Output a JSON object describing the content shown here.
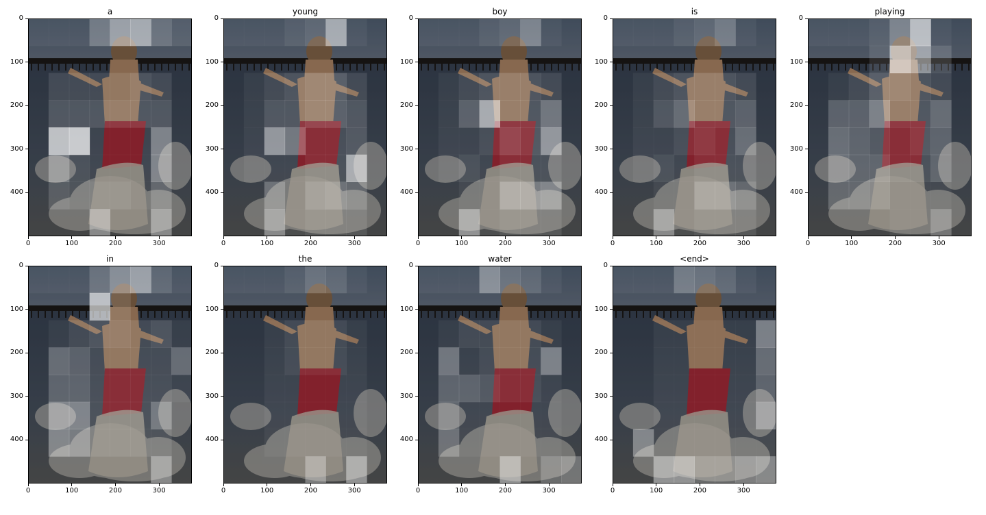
{
  "chart_data": {
    "type": "heatmap",
    "description_free": true,
    "x_ticks": [
      0,
      100,
      200,
      300
    ],
    "y_ticks": [
      0,
      100,
      200,
      300,
      400
    ],
    "xlim": [
      0,
      375
    ],
    "ylim": [
      500,
      0
    ],
    "grid": {
      "rows": 8,
      "cols": 8
    },
    "panels": [
      {
        "title": "a",
        "attention": [
          [
            0.15,
            0.15,
            0.15,
            0.35,
            0.55,
            0.6,
            0.3,
            0.2
          ],
          [
            0.1,
            0.1,
            0.1,
            0.1,
            0.1,
            0.1,
            0.1,
            0.1
          ],
          [
            0.1,
            0.2,
            0.2,
            0.2,
            0.2,
            0.25,
            0.2,
            0.1
          ],
          [
            0.1,
            0.25,
            0.25,
            0.25,
            0.25,
            0.25,
            0.25,
            0.1
          ],
          [
            0.1,
            0.75,
            0.8,
            0.15,
            0.15,
            0.15,
            0.45,
            0.1
          ],
          [
            0.1,
            0.4,
            0.2,
            0.15,
            0.15,
            0.15,
            0.45,
            0.1
          ],
          [
            0.1,
            0.25,
            0.2,
            0.2,
            0.2,
            0.15,
            0.3,
            0.1
          ],
          [
            0.1,
            0.1,
            0.1,
            0.45,
            0.1,
            0.1,
            0.45,
            0.1
          ]
        ]
      },
      {
        "title": "young",
        "attention": [
          [
            0.15,
            0.15,
            0.15,
            0.2,
            0.25,
            0.6,
            0.15,
            0.1
          ],
          [
            0.1,
            0.1,
            0.1,
            0.1,
            0.1,
            0.1,
            0.1,
            0.1
          ],
          [
            0.1,
            0.15,
            0.2,
            0.25,
            0.3,
            0.3,
            0.2,
            0.1
          ],
          [
            0.1,
            0.15,
            0.25,
            0.25,
            0.3,
            0.3,
            0.25,
            0.1
          ],
          [
            0.1,
            0.15,
            0.55,
            0.4,
            0.2,
            0.2,
            0.25,
            0.1
          ],
          [
            0.1,
            0.15,
            0.15,
            0.15,
            0.2,
            0.2,
            0.65,
            0.1
          ],
          [
            0.1,
            0.1,
            0.35,
            0.15,
            0.3,
            0.35,
            0.3,
            0.1
          ],
          [
            0.1,
            0.1,
            0.45,
            0.15,
            0.2,
            0.2,
            0.2,
            0.1
          ]
        ]
      },
      {
        "title": "boy",
        "attention": [
          [
            0.15,
            0.15,
            0.15,
            0.2,
            0.25,
            0.4,
            0.15,
            0.1
          ],
          [
            0.1,
            0.1,
            0.1,
            0.1,
            0.1,
            0.1,
            0.1,
            0.1
          ],
          [
            0.1,
            0.15,
            0.2,
            0.25,
            0.25,
            0.25,
            0.2,
            0.1
          ],
          [
            0.1,
            0.15,
            0.3,
            0.65,
            0.25,
            0.25,
            0.4,
            0.1
          ],
          [
            0.1,
            0.15,
            0.15,
            0.2,
            0.3,
            0.25,
            0.55,
            0.1
          ],
          [
            0.1,
            0.15,
            0.2,
            0.15,
            0.2,
            0.2,
            0.2,
            0.1
          ],
          [
            0.1,
            0.1,
            0.15,
            0.15,
            0.4,
            0.4,
            0.45,
            0.1
          ],
          [
            0.1,
            0.1,
            0.5,
            0.15,
            0.2,
            0.2,
            0.2,
            0.1
          ]
        ]
      },
      {
        "title": "is",
        "attention": [
          [
            0.15,
            0.15,
            0.15,
            0.2,
            0.25,
            0.35,
            0.15,
            0.1
          ],
          [
            0.1,
            0.1,
            0.1,
            0.1,
            0.1,
            0.1,
            0.1,
            0.1
          ],
          [
            0.1,
            0.15,
            0.2,
            0.25,
            0.25,
            0.25,
            0.2,
            0.1
          ],
          [
            0.1,
            0.15,
            0.25,
            0.35,
            0.25,
            0.25,
            0.3,
            0.1
          ],
          [
            0.1,
            0.15,
            0.15,
            0.2,
            0.25,
            0.2,
            0.35,
            0.1
          ],
          [
            0.1,
            0.15,
            0.2,
            0.15,
            0.2,
            0.2,
            0.2,
            0.1
          ],
          [
            0.1,
            0.1,
            0.15,
            0.15,
            0.35,
            0.35,
            0.3,
            0.1
          ],
          [
            0.1,
            0.1,
            0.45,
            0.15,
            0.2,
            0.2,
            0.2,
            0.1
          ]
        ]
      },
      {
        "title": "playing",
        "attention": [
          [
            0.15,
            0.15,
            0.15,
            0.2,
            0.4,
            0.7,
            0.15,
            0.1
          ],
          [
            0.1,
            0.1,
            0.1,
            0.2,
            0.7,
            0.55,
            0.25,
            0.1
          ],
          [
            0.1,
            0.15,
            0.2,
            0.3,
            0.3,
            0.25,
            0.2,
            0.1
          ],
          [
            0.1,
            0.3,
            0.3,
            0.45,
            0.25,
            0.25,
            0.35,
            0.1
          ],
          [
            0.1,
            0.35,
            0.3,
            0.25,
            0.2,
            0.25,
            0.3,
            0.1
          ],
          [
            0.1,
            0.35,
            0.3,
            0.3,
            0.2,
            0.2,
            0.3,
            0.1
          ],
          [
            0.1,
            0.3,
            0.3,
            0.25,
            0.15,
            0.15,
            0.15,
            0.1
          ],
          [
            0.1,
            0.1,
            0.1,
            0.1,
            0.15,
            0.15,
            0.35,
            0.1
          ]
        ]
      },
      {
        "title": "in",
        "attention": [
          [
            0.15,
            0.15,
            0.15,
            0.3,
            0.45,
            0.55,
            0.25,
            0.15
          ],
          [
            0.1,
            0.1,
            0.1,
            0.7,
            0.2,
            0.1,
            0.1,
            0.1
          ],
          [
            0.1,
            0.15,
            0.2,
            0.25,
            0.25,
            0.2,
            0.25,
            0.15
          ],
          [
            0.1,
            0.35,
            0.3,
            0.2,
            0.2,
            0.2,
            0.2,
            0.35
          ],
          [
            0.1,
            0.3,
            0.3,
            0.2,
            0.2,
            0.2,
            0.2,
            0.15
          ],
          [
            0.1,
            0.45,
            0.45,
            0.2,
            0.2,
            0.2,
            0.4,
            0.1
          ],
          [
            0.1,
            0.45,
            0.4,
            0.2,
            0.2,
            0.2,
            0.2,
            0.1
          ],
          [
            0.1,
            0.1,
            0.1,
            0.1,
            0.1,
            0.1,
            0.45,
            0.1
          ]
        ]
      },
      {
        "title": "the",
        "attention": [
          [
            0.15,
            0.15,
            0.15,
            0.2,
            0.3,
            0.25,
            0.15,
            0.1
          ],
          [
            0.1,
            0.1,
            0.1,
            0.1,
            0.1,
            0.1,
            0.1,
            0.1
          ],
          [
            0.1,
            0.1,
            0.15,
            0.2,
            0.2,
            0.2,
            0.15,
            0.1
          ],
          [
            0.1,
            0.1,
            0.15,
            0.2,
            0.2,
            0.2,
            0.15,
            0.1
          ],
          [
            0.1,
            0.1,
            0.15,
            0.15,
            0.15,
            0.15,
            0.15,
            0.1
          ],
          [
            0.1,
            0.1,
            0.15,
            0.15,
            0.15,
            0.15,
            0.15,
            0.1
          ],
          [
            0.1,
            0.1,
            0.15,
            0.15,
            0.15,
            0.15,
            0.15,
            0.1
          ],
          [
            0.1,
            0.1,
            0.1,
            0.1,
            0.4,
            0.1,
            0.5,
            0.1
          ]
        ]
      },
      {
        "title": "water",
        "attention": [
          [
            0.15,
            0.15,
            0.15,
            0.45,
            0.3,
            0.25,
            0.15,
            0.1
          ],
          [
            0.1,
            0.1,
            0.1,
            0.1,
            0.1,
            0.1,
            0.1,
            0.1
          ],
          [
            0.1,
            0.15,
            0.2,
            0.2,
            0.2,
            0.2,
            0.15,
            0.1
          ],
          [
            0.1,
            0.4,
            0.15,
            0.2,
            0.2,
            0.2,
            0.45,
            0.1
          ],
          [
            0.1,
            0.3,
            0.3,
            0.25,
            0.2,
            0.2,
            0.15,
            0.1
          ],
          [
            0.1,
            0.3,
            0.15,
            0.15,
            0.15,
            0.15,
            0.15,
            0.1
          ],
          [
            0.1,
            0.35,
            0.15,
            0.15,
            0.15,
            0.15,
            0.15,
            0.1
          ],
          [
            0.1,
            0.1,
            0.1,
            0.1,
            0.5,
            0.1,
            0.3,
            0.35
          ]
        ]
      },
      {
        "title": "<end>",
        "attention": [
          [
            0.15,
            0.15,
            0.15,
            0.35,
            0.3,
            0.25,
            0.15,
            0.1
          ],
          [
            0.1,
            0.1,
            0.1,
            0.1,
            0.1,
            0.1,
            0.1,
            0.1
          ],
          [
            0.1,
            0.1,
            0.15,
            0.15,
            0.15,
            0.15,
            0.15,
            0.45
          ],
          [
            0.1,
            0.1,
            0.15,
            0.15,
            0.15,
            0.15,
            0.15,
            0.35
          ],
          [
            0.1,
            0.1,
            0.15,
            0.15,
            0.15,
            0.15,
            0.15,
            0.3
          ],
          [
            0.1,
            0.1,
            0.15,
            0.15,
            0.15,
            0.15,
            0.15,
            0.45
          ],
          [
            0.1,
            0.45,
            0.15,
            0.15,
            0.15,
            0.15,
            0.15,
            0.15
          ],
          [
            0.1,
            0.1,
            0.5,
            0.5,
            0.3,
            0.3,
            0.4,
            0.45
          ]
        ]
      }
    ]
  },
  "colors": {
    "sky": "#4f5f73",
    "sea": "#3a4556",
    "pier": "#1c1a18",
    "skin": "#b48b6a",
    "shorts": "#a61e2c",
    "foam": "#d8d4cb",
    "attention": "#ffffff"
  }
}
